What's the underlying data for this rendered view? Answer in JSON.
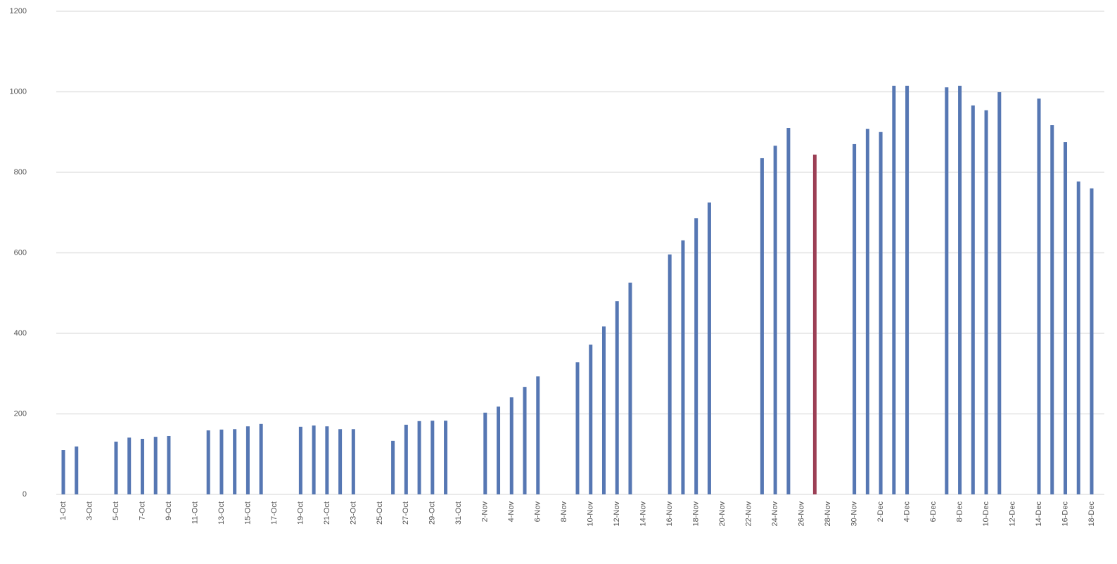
{
  "chart_data": {
    "type": "bar",
    "categories": [
      "1-Oct",
      null,
      "3-Oct",
      null,
      "5-Oct",
      null,
      "7-Oct",
      null,
      "9-Oct",
      null,
      "11-Oct",
      null,
      "13-Oct",
      null,
      "15-Oct",
      null,
      "17-Oct",
      null,
      "19-Oct",
      null,
      "21-Oct",
      null,
      "23-Oct",
      null,
      "25-Oct",
      null,
      "27-Oct",
      null,
      "29-Oct",
      null,
      "31-Oct",
      null,
      "2-Nov",
      null,
      "4-Nov",
      null,
      "6-Nov",
      null,
      "8-Nov",
      null,
      "10-Nov",
      null,
      "12-Nov",
      null,
      "14-Nov",
      null,
      "16-Nov",
      null,
      "18-Nov",
      null,
      "20-Nov",
      null,
      "22-Nov",
      null,
      "24-Nov",
      null,
      "26-Nov",
      null,
      "28-Nov",
      null,
      "30-Nov",
      null,
      "2-Dec",
      null,
      "4-Dec",
      null,
      "6-Dec",
      null,
      "8-Dec",
      null,
      "10-Dec",
      null,
      "12-Dec",
      null,
      "14-Dec",
      null,
      "16-Dec",
      null,
      "18-Dec"
    ],
    "values": [
      110,
      119,
      null,
      null,
      131,
      141,
      138,
      143,
      145,
      null,
      null,
      159,
      161,
      162,
      169,
      175,
      null,
      null,
      168,
      171,
      169,
      162,
      162,
      null,
      null,
      133,
      173,
      182,
      183,
      183,
      null,
      null,
      203,
      218,
      241,
      267,
      293,
      null,
      null,
      328,
      372,
      417,
      480,
      526,
      null,
      null,
      596,
      631,
      686,
      725,
      null,
      null,
      null,
      835,
      866,
      910,
      null,
      844,
      null,
      null,
      870,
      908,
      900,
      1015,
      1015,
      null,
      null,
      1011,
      1015,
      966,
      954,
      999,
      null,
      null,
      983,
      917,
      875,
      777,
      760
    ],
    "color": "#5677b3",
    "highlight_index": 57,
    "highlight_color": "#9c3f55",
    "ylim": [
      0,
      1200
    ],
    "yticks": [
      0,
      200,
      400,
      600,
      800,
      1000,
      1200
    ],
    "grid": true
  }
}
